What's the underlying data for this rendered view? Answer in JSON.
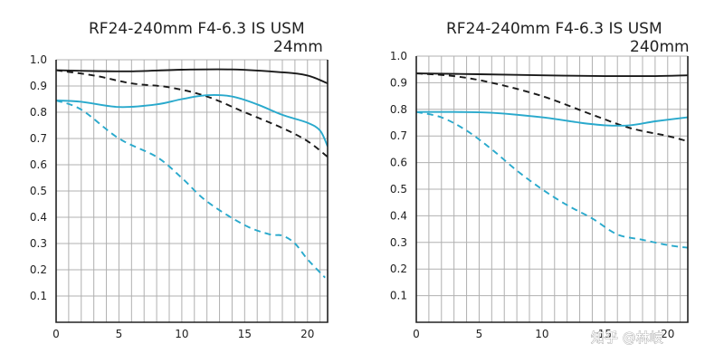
{
  "watermark": "知乎 @林岐",
  "colors": {
    "black": "#1a1a1a",
    "blue": "#29a9cc"
  },
  "chart_data": [
    {
      "type": "line",
      "title": "RF24-240mm F4-6.3 IS USM",
      "subtitle": "24mm",
      "xlim": [
        0,
        21.6
      ],
      "ylim": [
        0,
        1.0
      ],
      "xticks": [
        0,
        5,
        10,
        15,
        20
      ],
      "xtick_labels": [
        "0",
        "5",
        "10",
        "15",
        "20"
      ],
      "yticks": [
        0.1,
        0.2,
        0.3,
        0.4,
        0.5,
        0.6,
        0.7,
        0.8,
        0.9,
        1.0
      ],
      "ytick_labels": [
        "0.1",
        "0.2",
        "0.3",
        "0.4",
        "0.5",
        "0.6",
        "0.7",
        "0.8",
        "0.9",
        "1.0"
      ],
      "series": [
        {
          "name": "black-solid",
          "color": "#1a1a1a",
          "dash": false,
          "x": [
            0,
            3,
            6,
            10,
            14,
            18,
            20,
            21.6
          ],
          "y": [
            0.96,
            0.957,
            0.956,
            0.962,
            0.963,
            0.952,
            0.94,
            0.91
          ]
        },
        {
          "name": "black-dashed",
          "color": "#1a1a1a",
          "dash": true,
          "x": [
            0,
            3,
            6,
            9,
            12,
            15,
            18,
            20,
            21.6
          ],
          "y": [
            0.96,
            0.94,
            0.91,
            0.895,
            0.86,
            0.8,
            0.74,
            0.69,
            0.63
          ]
        },
        {
          "name": "blue-solid",
          "color": "#29a9cc",
          "dash": false,
          "x": [
            0,
            2,
            5,
            8,
            10,
            12,
            14,
            16,
            18,
            20,
            21,
            21.6
          ],
          "y": [
            0.845,
            0.84,
            0.82,
            0.83,
            0.85,
            0.865,
            0.86,
            0.83,
            0.79,
            0.76,
            0.73,
            0.67
          ]
        },
        {
          "name": "blue-dashed",
          "color": "#29a9cc",
          "dash": true,
          "x": [
            0,
            2,
            5,
            8,
            10,
            12,
            15,
            17,
            18,
            19,
            20,
            21.4
          ],
          "y": [
            0.845,
            0.81,
            0.7,
            0.63,
            0.55,
            0.46,
            0.37,
            0.335,
            0.33,
            0.3,
            0.24,
            0.17
          ]
        }
      ]
    },
    {
      "type": "line",
      "title": "RF24-240mm F4-6.3 IS USM",
      "subtitle": "240mm",
      "xlim": [
        0,
        21.6
      ],
      "ylim": [
        0,
        1.0
      ],
      "xticks": [
        0,
        5,
        10,
        15,
        20
      ],
      "xtick_labels": [
        "0",
        "5",
        "10",
        "15",
        "20"
      ],
      "yticks": [
        0.1,
        0.2,
        0.3,
        0.4,
        0.5,
        0.6,
        0.7,
        0.8,
        0.9,
        1.0
      ],
      "ytick_labels": [
        "0.1",
        "0.2",
        "0.3",
        "0.4",
        "0.5",
        "0.6",
        "0.7",
        "0.8",
        "0.9",
        "1.0"
      ],
      "series": [
        {
          "name": "black-solid",
          "color": "#1a1a1a",
          "dash": false,
          "x": [
            0,
            5,
            10,
            15,
            19,
            21.6
          ],
          "y": [
            0.935,
            0.932,
            0.928,
            0.925,
            0.925,
            0.928
          ]
        },
        {
          "name": "black-dashed",
          "color": "#1a1a1a",
          "dash": true,
          "x": [
            0,
            3,
            6,
            10,
            14,
            17,
            20,
            21.6
          ],
          "y": [
            0.935,
            0.925,
            0.9,
            0.85,
            0.78,
            0.73,
            0.7,
            0.68
          ]
        },
        {
          "name": "blue-solid",
          "color": "#29a9cc",
          "dash": false,
          "x": [
            0,
            3,
            6,
            10,
            13,
            15,
            17,
            19,
            21.6
          ],
          "y": [
            0.79,
            0.79,
            0.787,
            0.77,
            0.75,
            0.74,
            0.74,
            0.755,
            0.77
          ]
        },
        {
          "name": "blue-dashed",
          "color": "#29a9cc",
          "dash": true,
          "x": [
            0,
            2,
            4,
            6,
            8,
            10,
            12,
            14,
            16,
            18,
            20,
            21.6
          ],
          "y": [
            0.79,
            0.77,
            0.72,
            0.65,
            0.57,
            0.5,
            0.44,
            0.39,
            0.33,
            0.31,
            0.29,
            0.28
          ]
        }
      ]
    }
  ]
}
